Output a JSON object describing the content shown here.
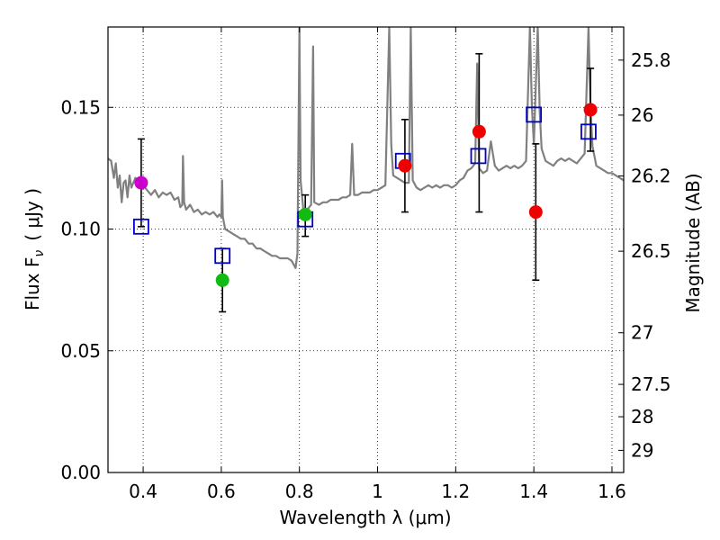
{
  "chart_data": {
    "type": "scatter",
    "xlabel": "Wavelength  λ (μm)",
    "ylabel": "Flux  F",
    "ylabel_sub": "ν",
    "ylabel_unit": "( μJy )",
    "y2label": "Magnitude (AB)",
    "xlim": [
      0.31,
      1.63
    ],
    "ylim": [
      0.0,
      0.183
    ],
    "grid": true,
    "x_ticks": [
      {
        "value": 0.4,
        "label": "0.4"
      },
      {
        "value": 0.6,
        "label": "0.6"
      },
      {
        "value": 0.8,
        "label": "0.8"
      },
      {
        "value": 1.0,
        "label": "1"
      },
      {
        "value": 1.2,
        "label": "1.2"
      },
      {
        "value": 1.4,
        "label": "1.4"
      },
      {
        "value": 1.6,
        "label": "1.6"
      }
    ],
    "y_ticks": [
      {
        "value": 0.0,
        "label": "0.00"
      },
      {
        "value": 0.05,
        "label": "0.05"
      },
      {
        "value": 0.1,
        "label": "0.10"
      },
      {
        "value": 0.15,
        "label": "0.15"
      }
    ],
    "y2_ticks": [
      {
        "flux": 0.1694,
        "label": "25.8"
      },
      {
        "flux": 0.1468,
        "label": "26"
      },
      {
        "flux": 0.1218,
        "label": "26.2"
      },
      {
        "flux": 0.0909,
        "label": "26.5"
      },
      {
        "flux": 0.0574,
        "label": "27"
      },
      {
        "flux": 0.0362,
        "label": "27.5"
      },
      {
        "flux": 0.0229,
        "label": "28"
      },
      {
        "flux": 0.0091,
        "label": "29"
      }
    ],
    "observed_points": [
      {
        "x": 0.395,
        "y": 0.119,
        "color": "#cc00cc",
        "yerr_low": null,
        "yerr_high": null
      },
      {
        "x": 0.603,
        "y": 0.079,
        "color": "#11bb11",
        "yerr_low": 0.066,
        "yerr_high": 0.092
      },
      {
        "x": 0.815,
        "y": 0.106,
        "color": "#11bb11",
        "yerr_low": 0.097,
        "yerr_high": 0.114
      },
      {
        "x": 1.07,
        "y": 0.126,
        "color": "#ee0000",
        "yerr_low": 0.107,
        "yerr_high": 0.145
      },
      {
        "x": 1.26,
        "y": 0.14,
        "color": "#ee0000",
        "yerr_low": 0.107,
        "yerr_high": 0.172
      },
      {
        "x": 1.405,
        "y": 0.107,
        "color": "#ee0000",
        "yerr_low": 0.079,
        "yerr_high": 0.135
      },
      {
        "x": 1.545,
        "y": 0.149,
        "color": "#ee0000",
        "yerr_low": 0.132,
        "yerr_high": 0.166
      }
    ],
    "model_points": [
      {
        "x": 0.395,
        "y": 0.101,
        "yerr_low": 0.101,
        "yerr_high": 0.137
      },
      {
        "x": 0.603,
        "y": 0.089,
        "yerr_low": null,
        "yerr_high": null
      },
      {
        "x": 0.815,
        "y": 0.104,
        "yerr_low": null,
        "yerr_high": null
      },
      {
        "x": 1.065,
        "y": 0.128,
        "yerr_low": null,
        "yerr_high": null
      },
      {
        "x": 1.258,
        "y": 0.13,
        "yerr_low": null,
        "yerr_high": null
      },
      {
        "x": 1.4,
        "y": 0.147,
        "yerr_low": null,
        "yerr_high": null
      },
      {
        "x": 1.54,
        "y": 0.14,
        "yerr_low": null,
        "yerr_high": null
      }
    ],
    "model_spectrum": [
      [
        0.31,
        0.129
      ],
      [
        0.318,
        0.128
      ],
      [
        0.325,
        0.121
      ],
      [
        0.33,
        0.127
      ],
      [
        0.335,
        0.117
      ],
      [
        0.34,
        0.122
      ],
      [
        0.345,
        0.111
      ],
      [
        0.35,
        0.119
      ],
      [
        0.355,
        0.12
      ],
      [
        0.36,
        0.113
      ],
      [
        0.365,
        0.122
      ],
      [
        0.37,
        0.117
      ],
      [
        0.38,
        0.121
      ],
      [
        0.39,
        0.12
      ],
      [
        0.4,
        0.118
      ],
      [
        0.41,
        0.116
      ],
      [
        0.42,
        0.114
      ],
      [
        0.43,
        0.116
      ],
      [
        0.44,
        0.113
      ],
      [
        0.45,
        0.115
      ],
      [
        0.46,
        0.114
      ],
      [
        0.47,
        0.115
      ],
      [
        0.48,
        0.112
      ],
      [
        0.49,
        0.113
      ],
      [
        0.495,
        0.109
      ],
      [
        0.5,
        0.11
      ],
      [
        0.502,
        0.13
      ],
      [
        0.505,
        0.111
      ],
      [
        0.51,
        0.108
      ],
      [
        0.52,
        0.11
      ],
      [
        0.53,
        0.107
      ],
      [
        0.54,
        0.108
      ],
      [
        0.55,
        0.106
      ],
      [
        0.56,
        0.107
      ],
      [
        0.57,
        0.106
      ],
      [
        0.58,
        0.107
      ],
      [
        0.59,
        0.105
      ],
      [
        0.595,
        0.106
      ],
      [
        0.6,
        0.105
      ],
      [
        0.602,
        0.12
      ],
      [
        0.604,
        0.105
      ],
      [
        0.61,
        0.1
      ],
      [
        0.62,
        0.099
      ],
      [
        0.63,
        0.098
      ],
      [
        0.64,
        0.097
      ],
      [
        0.65,
        0.096
      ],
      [
        0.66,
        0.096
      ],
      [
        0.67,
        0.094
      ],
      [
        0.68,
        0.094
      ],
      [
        0.69,
        0.092
      ],
      [
        0.7,
        0.092
      ],
      [
        0.71,
        0.091
      ],
      [
        0.72,
        0.09
      ],
      [
        0.73,
        0.089
      ],
      [
        0.74,
        0.089
      ],
      [
        0.75,
        0.088
      ],
      [
        0.76,
        0.088
      ],
      [
        0.77,
        0.088
      ],
      [
        0.78,
        0.087
      ],
      [
        0.79,
        0.084
      ],
      [
        0.795,
        0.09
      ],
      [
        0.8,
        0.183
      ],
      [
        0.803,
        0.12
      ],
      [
        0.81,
        0.108
      ],
      [
        0.82,
        0.108
      ],
      [
        0.83,
        0.11
      ],
      [
        0.835,
        0.175
      ],
      [
        0.838,
        0.111
      ],
      [
        0.85,
        0.11
      ],
      [
        0.86,
        0.111
      ],
      [
        0.87,
        0.111
      ],
      [
        0.88,
        0.112
      ],
      [
        0.89,
        0.112
      ],
      [
        0.9,
        0.112
      ],
      [
        0.91,
        0.113
      ],
      [
        0.92,
        0.113
      ],
      [
        0.93,
        0.114
      ],
      [
        0.935,
        0.135
      ],
      [
        0.94,
        0.114
      ],
      [
        0.95,
        0.114
      ],
      [
        0.96,
        0.115
      ],
      [
        0.97,
        0.115
      ],
      [
        0.98,
        0.115
      ],
      [
        0.99,
        0.116
      ],
      [
        1.0,
        0.116
      ],
      [
        1.01,
        0.117
      ],
      [
        1.02,
        0.118
      ],
      [
        1.03,
        0.183
      ],
      [
        1.035,
        0.135
      ],
      [
        1.04,
        0.122
      ],
      [
        1.05,
        0.121
      ],
      [
        1.06,
        0.12
      ],
      [
        1.07,
        0.119
      ],
      [
        1.08,
        0.119
      ],
      [
        1.085,
        0.183
      ],
      [
        1.09,
        0.12
      ],
      [
        1.1,
        0.117
      ],
      [
        1.11,
        0.116
      ],
      [
        1.12,
        0.117
      ],
      [
        1.13,
        0.118
      ],
      [
        1.14,
        0.117
      ],
      [
        1.15,
        0.118
      ],
      [
        1.16,
        0.117
      ],
      [
        1.17,
        0.118
      ],
      [
        1.18,
        0.118
      ],
      [
        1.19,
        0.117
      ],
      [
        1.2,
        0.118
      ],
      [
        1.21,
        0.12
      ],
      [
        1.22,
        0.121
      ],
      [
        1.23,
        0.124
      ],
      [
        1.24,
        0.125
      ],
      [
        1.25,
        0.127
      ],
      [
        1.255,
        0.168
      ],
      [
        1.26,
        0.125
      ],
      [
        1.27,
        0.123
      ],
      [
        1.28,
        0.124
      ],
      [
        1.29,
        0.136
      ],
      [
        1.3,
        0.126
      ],
      [
        1.31,
        0.124
      ],
      [
        1.32,
        0.125
      ],
      [
        1.33,
        0.126
      ],
      [
        1.34,
        0.125
      ],
      [
        1.35,
        0.126
      ],
      [
        1.36,
        0.125
      ],
      [
        1.37,
        0.126
      ],
      [
        1.38,
        0.128
      ],
      [
        1.39,
        0.183
      ],
      [
        1.395,
        0.15
      ],
      [
        1.4,
        0.135
      ],
      [
        1.41,
        0.183
      ],
      [
        1.415,
        0.148
      ],
      [
        1.42,
        0.133
      ],
      [
        1.43,
        0.128
      ],
      [
        1.44,
        0.127
      ],
      [
        1.45,
        0.126
      ],
      [
        1.46,
        0.128
      ],
      [
        1.47,
        0.129
      ],
      [
        1.48,
        0.128
      ],
      [
        1.49,
        0.129
      ],
      [
        1.5,
        0.128
      ],
      [
        1.51,
        0.127
      ],
      [
        1.52,
        0.129
      ],
      [
        1.53,
        0.131
      ],
      [
        1.54,
        0.183
      ],
      [
        1.545,
        0.15
      ],
      [
        1.55,
        0.134
      ],
      [
        1.56,
        0.126
      ],
      [
        1.57,
        0.125
      ],
      [
        1.58,
        0.124
      ],
      [
        1.59,
        0.123
      ],
      [
        1.6,
        0.123
      ],
      [
        1.61,
        0.122
      ],
      [
        1.62,
        0.121
      ],
      [
        1.63,
        0.12
      ]
    ],
    "colors": {
      "spectrum": "#808080",
      "model_marker": "#0000cc",
      "errbar": "#000000"
    }
  }
}
